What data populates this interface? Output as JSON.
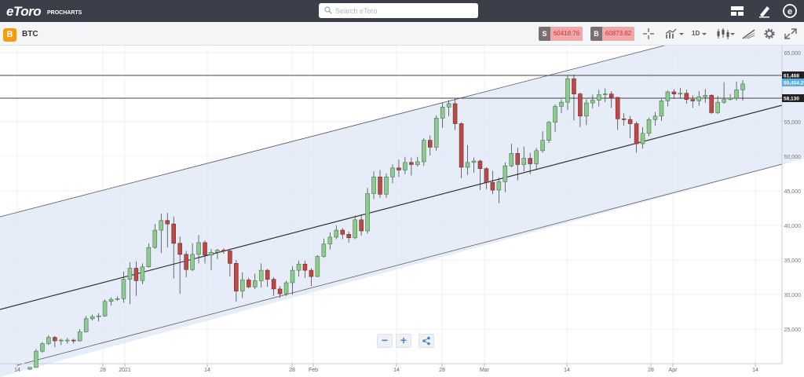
{
  "app": {
    "logo_text": "eToro",
    "logo_subtext": "PROCHARTS"
  },
  "search": {
    "placeholder": "Search eToro"
  },
  "header_icons": [
    "layout-icon",
    "pen-icon",
    "etoro-e-icon"
  ],
  "instrument": {
    "symbol": "BTC",
    "badge_glyph": "B"
  },
  "trade": {
    "sell_label": "S",
    "sell_price": "60418.76",
    "buy_label": "B",
    "buy_price": "60873.82"
  },
  "toolbar": {
    "crosshair_icon": "crosshair-icon",
    "chart_type_icon": "line-chart-icon",
    "timeframe": "1D",
    "candle_icon": "candlestick-icon",
    "draw_icon": "drawing-tool-icon",
    "settings_icon": "gear-icon",
    "fullscreen_icon": "expand-icon"
  },
  "colors": {
    "up": "#90c891",
    "up_border": "#3e7d41",
    "down": "#b94a48",
    "down_border": "#7a2624",
    "channel_fill": "#e6ecf8",
    "price_tag": "#5ab0e0"
  },
  "chart_data": {
    "type": "candlestick",
    "y_axis": {
      "ylim": [
        20000,
        66000
      ],
      "ticks": [
        {
          "value": 25000,
          "label": "25,000"
        },
        {
          "value": 30000,
          "label": "30,000"
        },
        {
          "value": 35000,
          "label": "35,000"
        },
        {
          "value": 40000,
          "label": "40,000"
        },
        {
          "value": 45000,
          "label": "45,000"
        },
        {
          "value": 50000,
          "label": "50,000"
        },
        {
          "value": 55000,
          "label": "55,000"
        },
        {
          "value": 65000,
          "label": "65,000"
        }
      ]
    },
    "x_axis": {
      "ticks": [
        "14",
        "28",
        "2021",
        "14",
        "28",
        "Feb",
        "14",
        "28",
        "Mar",
        "14",
        "28",
        "Apr",
        "14"
      ]
    },
    "price_labels": {
      "upper_line": "61,468",
      "current": "60,454.25",
      "lower_line": "58,130"
    },
    "candles": [
      [
        19200,
        19450,
        19100,
        19500
      ],
      [
        19450,
        21800,
        19400,
        22100
      ],
      [
        21800,
        22900,
        21600,
        23100
      ],
      [
        22900,
        23800,
        22700,
        24100
      ],
      [
        23800,
        23300,
        22400,
        24000
      ],
      [
        23300,
        23400,
        22700,
        23600
      ],
      [
        23400,
        23400,
        22900,
        23700
      ],
      [
        23400,
        23300,
        22900,
        23600
      ],
      [
        23300,
        24600,
        23200,
        25000
      ],
      [
        24600,
        26500,
        24500,
        26900
      ],
      [
        26500,
        26800,
        26200,
        27100
      ],
      [
        26800,
        26900,
        26100,
        27300
      ],
      [
        26900,
        29000,
        26800,
        29300
      ],
      [
        29000,
        29300,
        28400,
        29600
      ],
      [
        29300,
        29400,
        29100,
        29700
      ],
      [
        29400,
        32200,
        28800,
        33300
      ],
      [
        32200,
        33800,
        28600,
        34700
      ],
      [
        33800,
        32000,
        29800,
        34800
      ],
      [
        32000,
        34000,
        31500,
        34500
      ],
      [
        34000,
        36800,
        33900,
        37400
      ],
      [
        36800,
        39300,
        36600,
        40200
      ],
      [
        39300,
        40700,
        36000,
        41700
      ],
      [
        40700,
        40200,
        36800,
        41800
      ],
      [
        40200,
        37400,
        32300,
        41300
      ],
      [
        37400,
        35800,
        30100,
        38400
      ],
      [
        35800,
        33600,
        32500,
        36300
      ],
      [
        33600,
        35800,
        33400,
        37400
      ],
      [
        35800,
        37500,
        34500,
        38600
      ],
      [
        37500,
        35700,
        34500,
        37800
      ],
      [
        35700,
        36100,
        33500,
        36600
      ],
      [
        36100,
        36400,
        35100,
        36600
      ],
      [
        36400,
        36300,
        35900,
        36700
      ],
      [
        36300,
        34500,
        32600,
        36500
      ],
      [
        34500,
        30500,
        29000,
        35000
      ],
      [
        30500,
        32100,
        29500,
        33200
      ],
      [
        32100,
        31100,
        30900,
        32400
      ],
      [
        31100,
        32000,
        30800,
        33000
      ],
      [
        32000,
        33500,
        31000,
        34500
      ],
      [
        33500,
        32200,
        31100,
        33700
      ],
      [
        32200,
        30800,
        29800,
        32500
      ],
      [
        30800,
        30100,
        29500,
        31200
      ],
      [
        30100,
        31700,
        29800,
        32000
      ],
      [
        31700,
        33500,
        30000,
        34100
      ],
      [
        33500,
        34400,
        32600,
        34900
      ],
      [
        34400,
        33500,
        32400,
        34900
      ],
      [
        33500,
        32600,
        31200,
        33800
      ],
      [
        32600,
        35500,
        32500,
        35700
      ],
      [
        35500,
        37300,
        35300,
        38100
      ],
      [
        37300,
        38300,
        36500,
        39000
      ],
      [
        38300,
        39300,
        38000,
        40000
      ],
      [
        39300,
        38700,
        38000,
        39600
      ],
      [
        38700,
        38200,
        37500,
        39100
      ],
      [
        38200,
        40800,
        38000,
        41400
      ],
      [
        40800,
        39200,
        38500,
        41500
      ],
      [
        39200,
        44600,
        38800,
        45400
      ],
      [
        44600,
        47000,
        43800,
        47800
      ],
      [
        47000,
        44500,
        44000,
        48000
      ],
      [
        44500,
        47000,
        44000,
        47500
      ],
      [
        47000,
        48300,
        46100,
        48800
      ],
      [
        48300,
        48000,
        47000,
        49500
      ],
      [
        48000,
        49100,
        47400,
        49900
      ],
      [
        49100,
        48800,
        47200,
        49800
      ],
      [
        48800,
        49200,
        48500,
        49900
      ],
      [
        49200,
        52300,
        48600,
        52600
      ],
      [
        52300,
        51300,
        50100,
        53000
      ],
      [
        51300,
        55500,
        50800,
        55900
      ],
      [
        55500,
        57100,
        54100,
        57700
      ],
      [
        57100,
        57600,
        55800,
        58100
      ],
      [
        57600,
        54700,
        53800,
        58300
      ],
      [
        54700,
        48400,
        46800,
        54900
      ],
      [
        48400,
        49100,
        47300,
        51600
      ],
      [
        49100,
        49300,
        47600,
        49800
      ],
      [
        49300,
        48200,
        45100,
        49500
      ],
      [
        48200,
        46200,
        45200,
        48400
      ],
      [
        46200,
        45100,
        44500,
        47900
      ],
      [
        45100,
        46300,
        43200,
        46900
      ],
      [
        46300,
        48600,
        44800,
        49100
      ],
      [
        48600,
        50400,
        48400,
        51800
      ],
      [
        50400,
        48800,
        46500,
        51200
      ],
      [
        48800,
        49700,
        47800,
        51400
      ],
      [
        49700,
        48900,
        47400,
        50500
      ],
      [
        48900,
        50800,
        48000,
        51200
      ],
      [
        50800,
        52300,
        50500,
        53600
      ],
      [
        52300,
        54900,
        51900,
        55100
      ],
      [
        54900,
        57200,
        53500,
        57500
      ],
      [
        57200,
        57800,
        56200,
        58200
      ],
      [
        57800,
        61200,
        56700,
        61700
      ],
      [
        61200,
        59000,
        55200,
        61800
      ],
      [
        59000,
        55800,
        54200,
        59200
      ],
      [
        55800,
        57700,
        54500,
        58200
      ],
      [
        57700,
        58100,
        56900,
        58900
      ],
      [
        58100,
        58900,
        57200,
        59600
      ],
      [
        58900,
        59000,
        57800,
        59800
      ],
      [
        59000,
        58500,
        57000,
        59400
      ],
      [
        58500,
        55400,
        53800,
        58600
      ],
      [
        55400,
        55300,
        54400,
        56200
      ],
      [
        55300,
        54700,
        52600,
        55800
      ],
      [
        54700,
        51800,
        50500,
        55000
      ],
      [
        51800,
        53300,
        51100,
        54200
      ],
      [
        53300,
        55300,
        52900,
        55600
      ],
      [
        55300,
        55800,
        54400,
        56400
      ],
      [
        55800,
        58000,
        55100,
        58300
      ],
      [
        58000,
        59300,
        57200,
        59500
      ],
      [
        59300,
        59000,
        58300,
        59700
      ],
      [
        59000,
        59100,
        58400,
        59900
      ],
      [
        59100,
        58200,
        57600,
        59600
      ],
      [
        58200,
        58000,
        57000,
        58800
      ],
      [
        58000,
        58600,
        57300,
        59400
      ],
      [
        58600,
        58800,
        57700,
        59700
      ],
      [
        58800,
        56300,
        56100,
        59000
      ],
      [
        56300,
        57800,
        56100,
        58700
      ],
      [
        57800,
        58200,
        57600,
        60700
      ],
      [
        58200,
        58400,
        58000,
        59000
      ],
      [
        58400,
        59600,
        58000,
        60800
      ],
      [
        59600,
        60450,
        58000,
        61000
      ]
    ]
  }
}
